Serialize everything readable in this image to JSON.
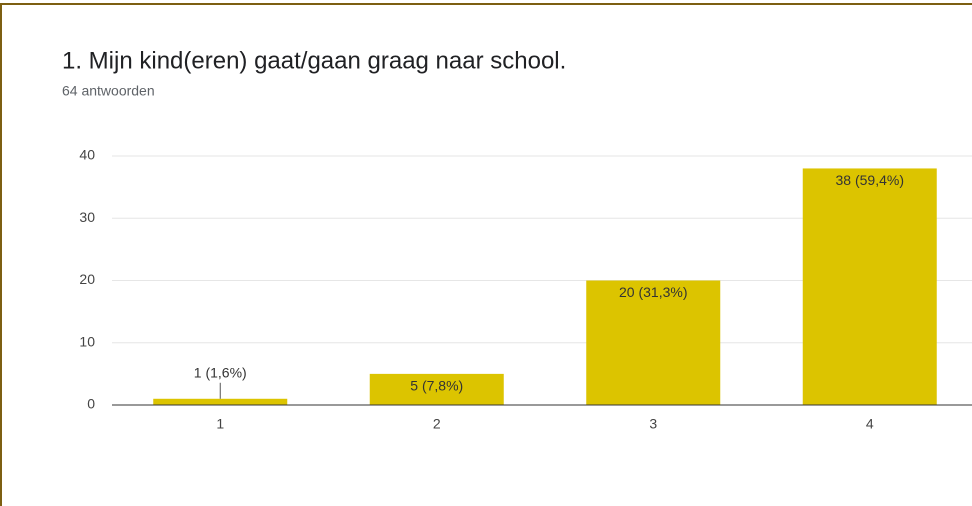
{
  "chart_data": {
    "type": "bar",
    "title": "1. Mijn kind(eren) gaat/gaan graag naar school.",
    "subtitle": "64 antwoorden",
    "categories": [
      "1",
      "2",
      "3",
      "4"
    ],
    "values": [
      1,
      5,
      20,
      38
    ],
    "value_labels": [
      "1 (1,6%)",
      "5 (7,8%)",
      "20 (31,3%)",
      "38 (59,4%)"
    ],
    "color": "#dcc400",
    "ylim": [
      0,
      40
    ],
    "yticks": [
      0,
      10,
      20,
      30,
      40
    ],
    "grid": true
  }
}
